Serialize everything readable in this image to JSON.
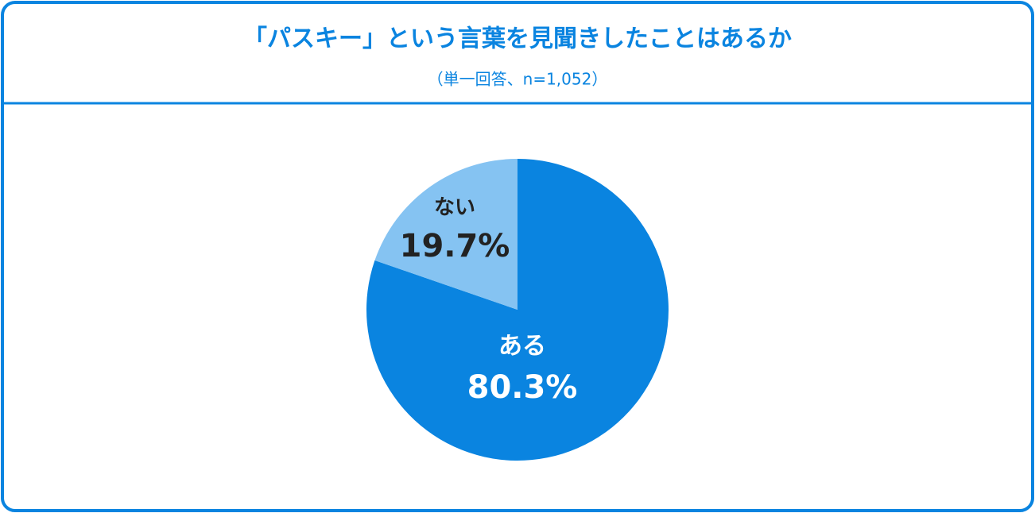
{
  "chart_data": {
    "type": "pie",
    "title": "「パスキー」という言葉を見聞きしたことはあるか",
    "subtitle": "（単一回答、n=1,052）",
    "categories": [
      "ある",
      "ない"
    ],
    "values": [
      80.3,
      19.7
    ],
    "value_labels": [
      "80.3%",
      "19.7%"
    ],
    "colors": [
      "#0a84e0",
      "#85c3f2"
    ],
    "label_colors": [
      "#ffffff",
      "#222222"
    ]
  }
}
